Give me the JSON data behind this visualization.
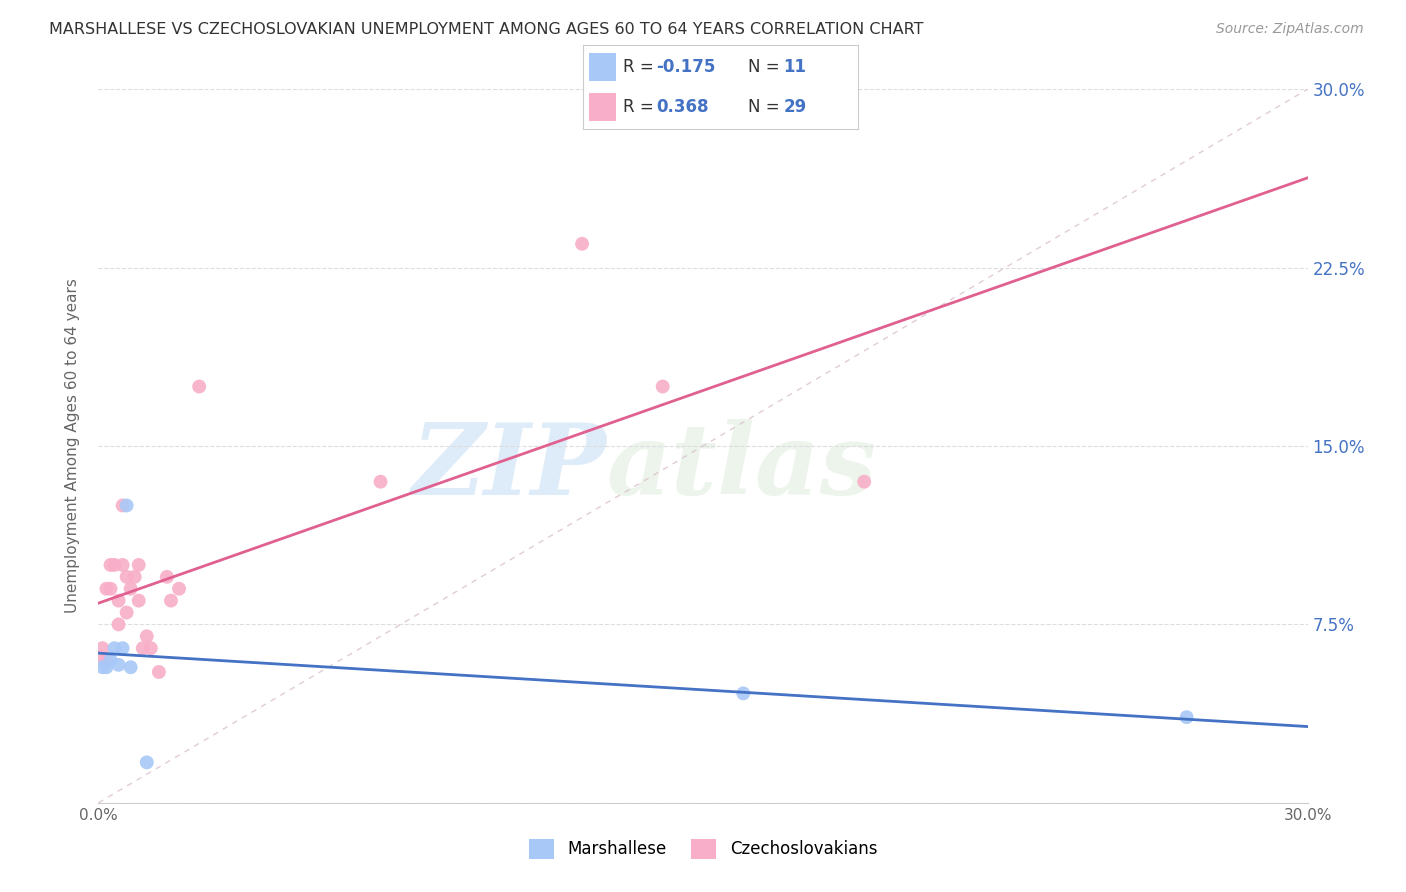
{
  "title": "MARSHALLESE VS CZECHOSLOVAKIAN UNEMPLOYMENT AMONG AGES 60 TO 64 YEARS CORRELATION CHART",
  "source": "Source: ZipAtlas.com",
  "ylabel": "Unemployment Among Ages 60 to 64 years",
  "xlim": [
    0.0,
    0.3
  ],
  "ylim": [
    0.0,
    0.3
  ],
  "marshallese_x": [
    0.001,
    0.002,
    0.003,
    0.004,
    0.005,
    0.006,
    0.007,
    0.008,
    0.012,
    0.16,
    0.27
  ],
  "marshallese_y": [
    0.057,
    0.057,
    0.06,
    0.065,
    0.058,
    0.065,
    0.125,
    0.057,
    0.017,
    0.046,
    0.036
  ],
  "czechoslovakian_x": [
    0.001,
    0.001,
    0.002,
    0.002,
    0.003,
    0.003,
    0.004,
    0.005,
    0.005,
    0.006,
    0.006,
    0.007,
    0.007,
    0.008,
    0.009,
    0.01,
    0.01,
    0.011,
    0.012,
    0.013,
    0.015,
    0.017,
    0.018,
    0.02,
    0.025,
    0.07,
    0.12,
    0.14,
    0.19
  ],
  "czechoslovakian_y": [
    0.06,
    0.065,
    0.06,
    0.09,
    0.09,
    0.1,
    0.1,
    0.075,
    0.085,
    0.1,
    0.125,
    0.08,
    0.095,
    0.09,
    0.095,
    0.085,
    0.1,
    0.065,
    0.07,
    0.065,
    0.055,
    0.095,
    0.085,
    0.09,
    0.175,
    0.135,
    0.235,
    0.175,
    0.135
  ],
  "marshallese_color": "#a8c8f8",
  "czechoslovakian_color": "#f8aec8",
  "marshallese_line_color": "#4472c4",
  "czechoslovakian_line_color": "#e06090",
  "diagonal_line_color": "#e8b8c8",
  "R_marshallese": -0.175,
  "N_marshallese": 11,
  "R_czechoslovakian": 0.368,
  "N_czechoslovakian": 29,
  "watermark_zip": "ZIP",
  "watermark_atlas": "atlas",
  "scatter_size": 100
}
